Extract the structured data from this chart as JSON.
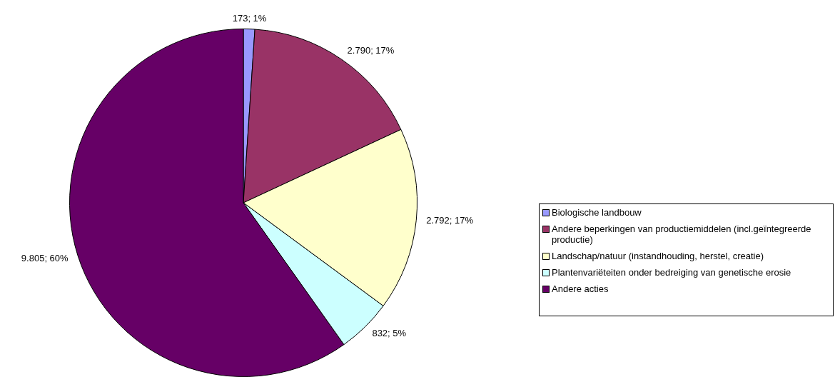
{
  "chart_data": {
    "type": "pie",
    "categories": [
      "Biologische landbouw",
      "Andere beperkingen van productiemiddelen (incl.geïntegreerde productie)",
      "Landschap/natuur (instandhouding, herstel, creatie)",
      "Plantenvariëteiten onder bedreiging van genetische erosie",
      "Andere acties"
    ],
    "values": [
      173,
      2790,
      2792,
      832,
      9805
    ],
    "value_labels": [
      "173; 1%",
      "2.790; 17%",
      "2.792; 17%",
      "832; 5%",
      "9.805; 60%"
    ],
    "colors": [
      "#9999ff",
      "#993366",
      "#ffffcc",
      "#ccffff",
      "#660066"
    ],
    "legend": "right"
  }
}
